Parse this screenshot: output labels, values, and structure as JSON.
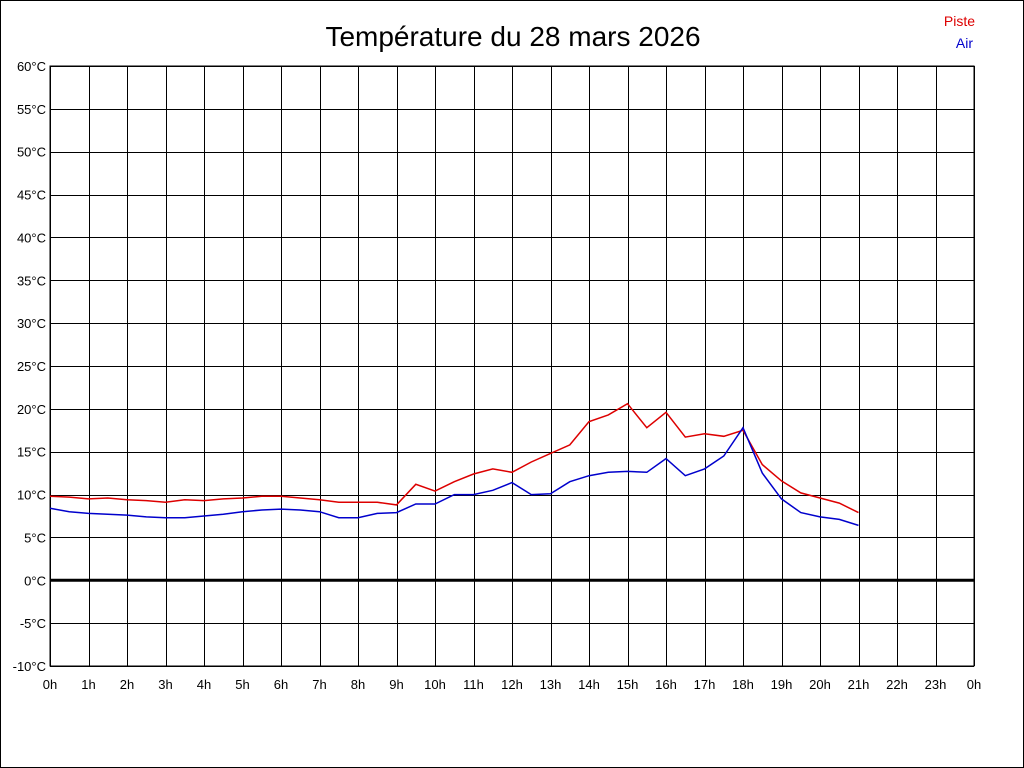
{
  "chart_data": {
    "type": "line",
    "title": "Température du 28 mars 2026",
    "xlabel": "",
    "ylabel": "",
    "x_tick_labels": [
      "0h",
      "1h",
      "2h",
      "3h",
      "4h",
      "5h",
      "6h",
      "7h",
      "8h",
      "9h",
      "10h",
      "11h",
      "12h",
      "13h",
      "14h",
      "15h",
      "16h",
      "17h",
      "18h",
      "19h",
      "20h",
      "21h",
      "22h",
      "23h",
      "0h"
    ],
    "y_tick_labels": [
      "60°C",
      "55°C",
      "50°C",
      "45°C",
      "40°C",
      "35°C",
      "30°C",
      "25°C",
      "20°C",
      "15°C",
      "10°C",
      "5°C",
      "0°C",
      "-5°C",
      "-10°C"
    ],
    "xlim": [
      0,
      24
    ],
    "ylim": [
      -10,
      60
    ],
    "grid": true,
    "legend": "top-right",
    "zero_line": 0,
    "x": [
      0,
      0.5,
      1,
      1.5,
      2,
      2.5,
      3,
      3.5,
      4,
      4.5,
      5,
      5.5,
      6,
      6.5,
      7,
      7.5,
      8,
      8.5,
      9,
      9.5,
      10,
      10.5,
      11,
      11.5,
      12,
      12.5,
      13,
      13.5,
      14,
      14.5,
      15,
      15.5,
      16,
      16.5,
      17,
      17.5,
      18,
      18.5,
      19,
      19.5,
      20,
      20.5,
      21
    ],
    "series": [
      {
        "name": "Piste",
        "color": "#dd0000",
        "values": [
          9.8,
          9.7,
          9.5,
          9.6,
          9.4,
          9.3,
          9.1,
          9.4,
          9.3,
          9.5,
          9.6,
          9.8,
          9.8,
          9.6,
          9.4,
          9.1,
          9.1,
          9.1,
          8.8,
          11.2,
          10.4,
          11.5,
          12.4,
          13.0,
          12.6,
          13.8,
          14.8,
          15.8,
          18.5,
          19.3,
          20.6,
          17.8,
          19.6,
          16.7,
          17.1,
          16.8,
          17.5,
          13.5,
          11.6,
          10.2,
          9.6,
          9.0,
          7.9
        ]
      },
      {
        "name": "Air",
        "color": "#0000cc",
        "values": [
          8.4,
          8.0,
          7.8,
          7.7,
          7.6,
          7.4,
          7.3,
          7.3,
          7.5,
          7.7,
          8.0,
          8.2,
          8.3,
          8.2,
          8.0,
          7.3,
          7.3,
          7.8,
          7.9,
          8.9,
          8.9,
          10.0,
          10.0,
          10.5,
          11.4,
          10.0,
          10.1,
          11.5,
          12.2,
          12.6,
          12.7,
          12.6,
          14.2,
          12.2,
          13.0,
          14.5,
          17.8,
          12.5,
          9.5,
          7.9,
          7.4,
          7.1,
          6.4
        ]
      }
    ]
  }
}
